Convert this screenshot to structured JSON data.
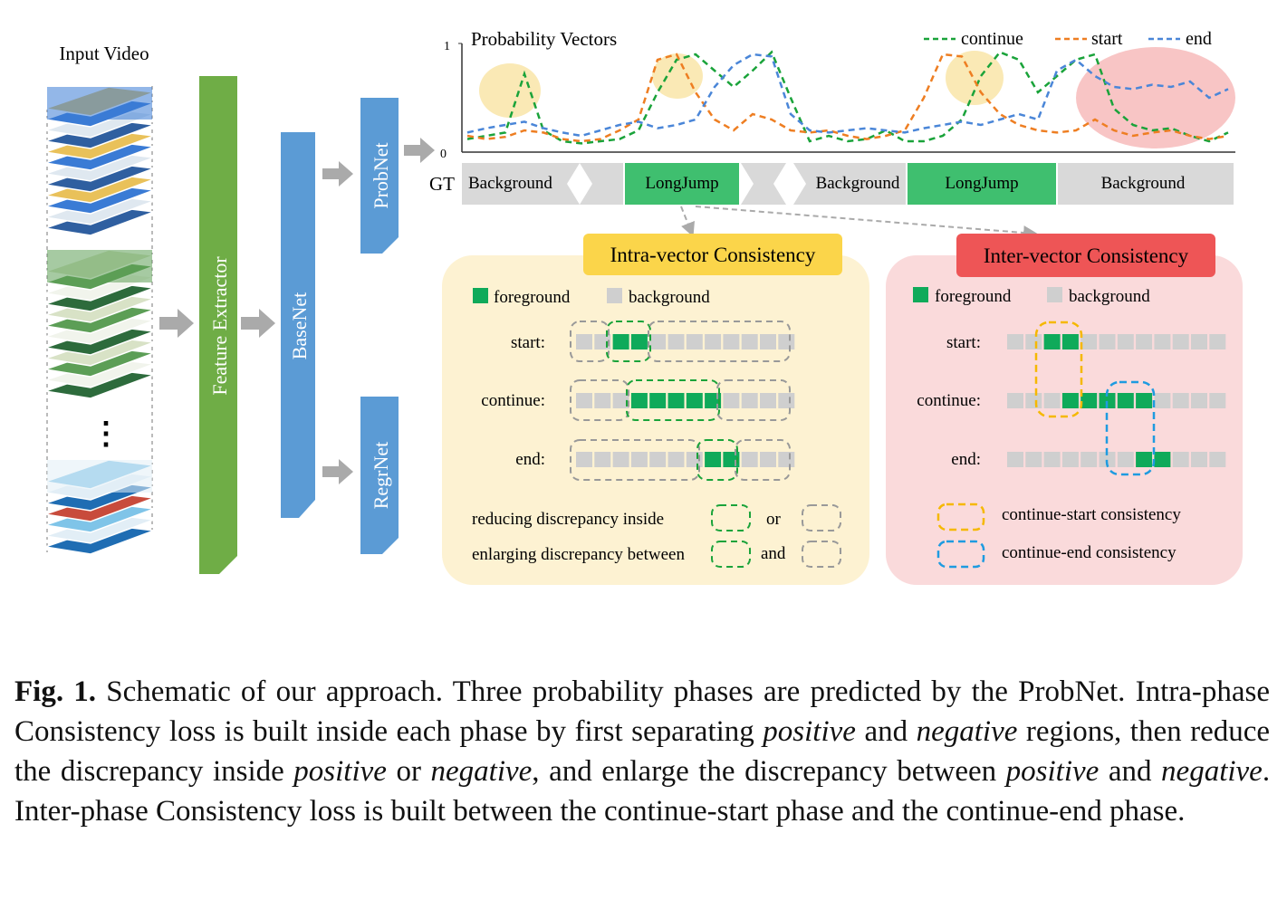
{
  "input": {
    "title": "Input Video",
    "ellipsis": "⋮"
  },
  "network": {
    "feature_extractor": "Feature Extractor",
    "basenet": "BaseNet",
    "probnet": "ProbNet",
    "regrnet": "RegrNet"
  },
  "chart": {
    "title": "Probability Vectors",
    "y_top": "1",
    "y_bottom": "0",
    "legend": [
      "continue",
      "start",
      "end"
    ]
  },
  "chart_data": {
    "type": "line",
    "title": "Probability Vectors",
    "ylim": [
      0,
      1
    ],
    "series": [
      {
        "name": "continue",
        "color": "#1aa33a",
        "values": [
          0.12,
          0.15,
          0.18,
          0.72,
          0.2,
          0.1,
          0.08,
          0.1,
          0.12,
          0.2,
          0.55,
          0.85,
          0.9,
          0.75,
          0.6,
          0.75,
          0.92,
          0.5,
          0.1,
          0.15,
          0.1,
          0.12,
          0.2,
          0.1,
          0.1,
          0.15,
          0.3,
          0.7,
          0.92,
          0.85,
          0.55,
          0.7,
          0.85,
          0.9,
          0.4,
          0.25,
          0.2,
          0.22,
          0.15,
          0.1,
          0.18
        ]
      },
      {
        "name": "start",
        "color": "#ee7e22",
        "values": [
          0.15,
          0.12,
          0.14,
          0.2,
          0.18,
          0.12,
          0.1,
          0.12,
          0.2,
          0.3,
          0.85,
          0.9,
          0.55,
          0.3,
          0.2,
          0.35,
          0.3,
          0.2,
          0.18,
          0.2,
          0.15,
          0.12,
          0.15,
          0.2,
          0.5,
          0.9,
          0.88,
          0.55,
          0.35,
          0.25,
          0.2,
          0.18,
          0.2,
          0.3,
          0.2,
          0.15,
          0.18,
          0.2,
          0.15,
          0.12,
          0.15
        ]
      },
      {
        "name": "end",
        "color": "#4a86d8",
        "values": [
          0.18,
          0.22,
          0.25,
          0.28,
          0.22,
          0.18,
          0.15,
          0.2,
          0.25,
          0.28,
          0.22,
          0.25,
          0.3,
          0.6,
          0.8,
          0.9,
          0.88,
          0.35,
          0.2,
          0.18,
          0.2,
          0.22,
          0.2,
          0.18,
          0.22,
          0.25,
          0.28,
          0.25,
          0.3,
          0.35,
          0.3,
          0.75,
          0.85,
          0.7,
          0.6,
          0.58,
          0.62,
          0.6,
          0.65,
          0.5,
          0.58
        ]
      }
    ]
  },
  "gt": {
    "label": "GT",
    "segments": [
      "Background",
      "LongJump",
      "Background",
      "LongJump",
      "Background"
    ]
  },
  "intra": {
    "title": "Intra-vector Consistency",
    "legend_fg": "foreground",
    "legend_bg": "background",
    "rows": [
      "start:",
      "continue:",
      "end:"
    ],
    "note1": "reducing  discrepancy inside",
    "note1_conj": "or",
    "note2": "enlarging discrepancy between",
    "note2_conj": "and"
  },
  "inter": {
    "title": "Inter-vector Consistency",
    "legend_fg": "foreground",
    "legend_bg": "background",
    "rows": [
      "start:",
      "continue:",
      "end:"
    ],
    "note1": "continue-start consistency",
    "note2": "continue-end consistency"
  },
  "caption": {
    "label": "Fig. 1.",
    "part1": "Schematic of our approach. Three probability phases are predicted by the ProbNet. Intra-phase Consistency loss is built inside each phase by first separating",
    "positive": "positive",
    "and1": "and",
    "negative": "negative",
    "part2": "regions, then reduce the discrepancy inside",
    "positive2": "positive",
    "or": "or",
    "negative2": "negative",
    "part3": ", and enlarge the discrepancy between",
    "positive3": "positive",
    "and2": "and",
    "negative3": "negative",
    "part4": ". Inter-phase Consistency loss is built between the continue-start phase and the continue-end phase."
  },
  "colors": {
    "green_net": "#6fad46",
    "blue_net": "#5b9bd5",
    "foreground": "#0faa5a",
    "background": "#cfcfcf",
    "intra_panel": "#fdf2d2",
    "intra_title": "#fbd54a",
    "inter_panel": "#fadadb",
    "inter_title": "#ee5556"
  }
}
